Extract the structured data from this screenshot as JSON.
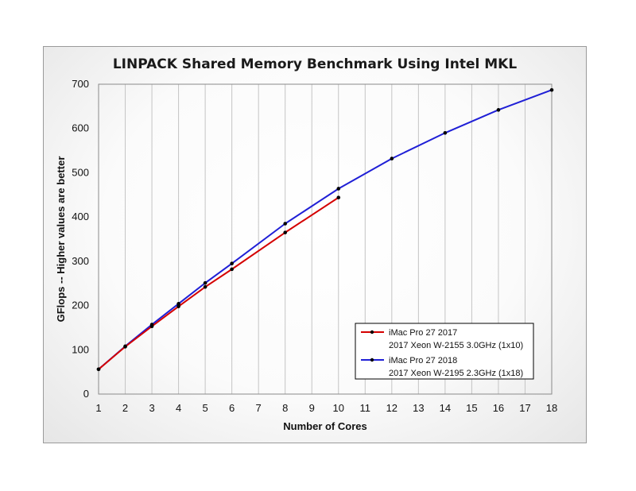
{
  "chart_data": {
    "type": "line",
    "title": "LINPACK Shared Memory Benchmark Using Intel MKL",
    "xlabel": "Number of Cores",
    "ylabel": "GFlops -- Higher values are better",
    "xlim": [
      1,
      18
    ],
    "ylim": [
      0,
      700
    ],
    "x_ticks": [
      1,
      2,
      3,
      4,
      5,
      6,
      7,
      8,
      9,
      10,
      11,
      12,
      13,
      14,
      15,
      16,
      17,
      18
    ],
    "y_ticks": [
      0,
      100,
      200,
      300,
      400,
      500,
      600,
      700
    ],
    "grid": "vertical",
    "legend_position": "bottom-right",
    "series": [
      {
        "name": "iMac Pro 27 2017",
        "subtitle": "2017 Xeon W-2155 3.0GHz (1x10)",
        "color": "#d40000",
        "x": [
          1,
          2,
          3,
          4,
          5,
          6,
          8,
          10
        ],
        "y": [
          56,
          107,
          153,
          198,
          242,
          282,
          365,
          444
        ]
      },
      {
        "name": "iMac Pro 27 2018",
        "subtitle": "2017 Xeon W-2195 2.3GHz (1x18)",
        "color": "#1f1fd6",
        "x": [
          1,
          2,
          3,
          4,
          5,
          6,
          8,
          10,
          12,
          14,
          16,
          18
        ],
        "y": [
          56,
          108,
          157,
          204,
          251,
          295,
          385,
          464,
          532,
          590,
          642,
          687
        ]
      }
    ]
  }
}
